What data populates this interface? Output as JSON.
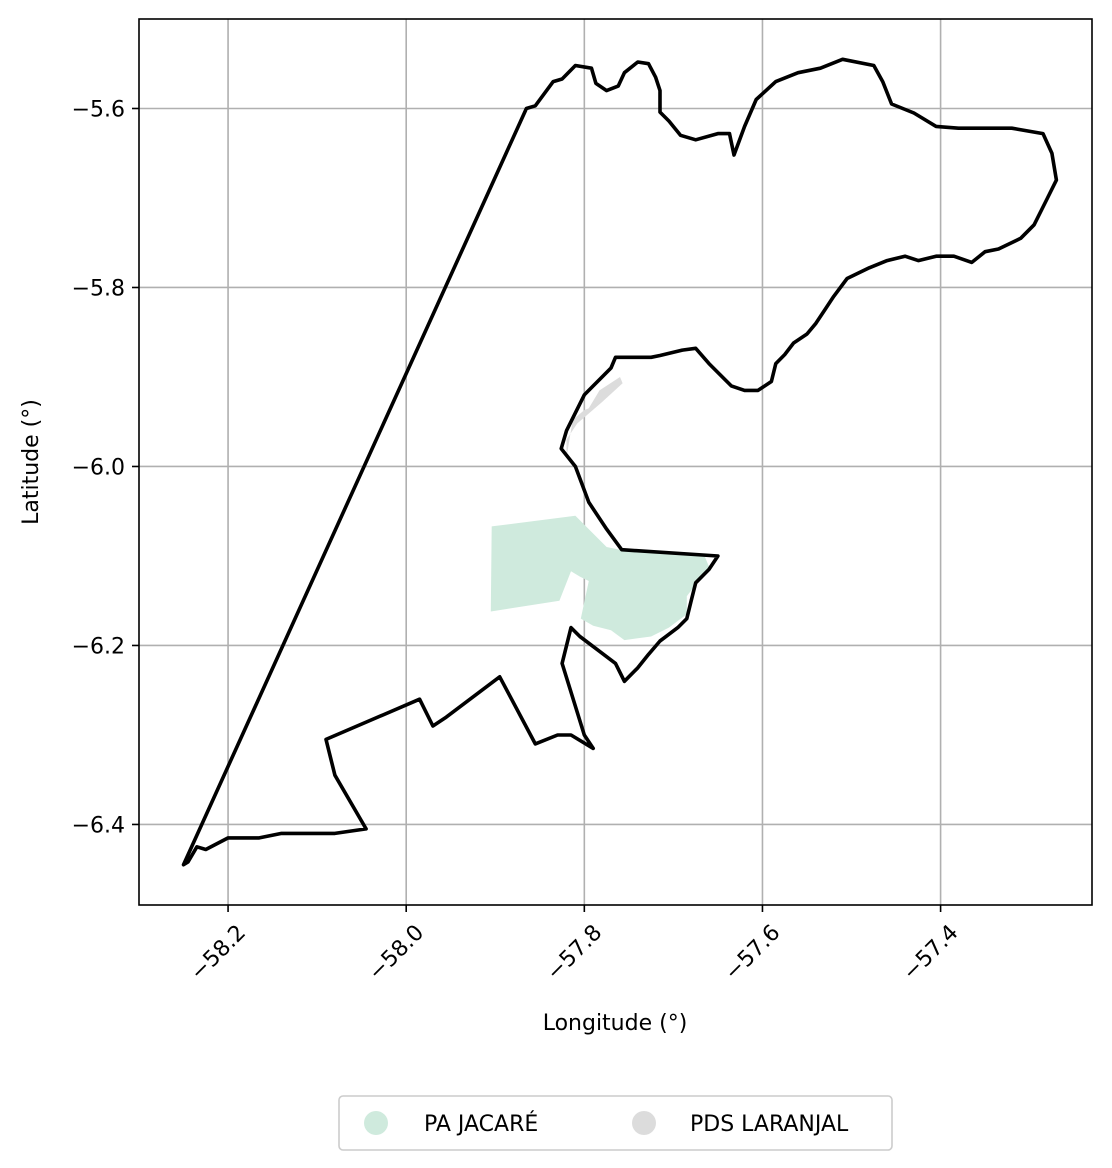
{
  "chart_data": {
    "type": "map",
    "xlabel": "Longitude (°)",
    "ylabel": "Latitude (°)",
    "xlim": [
      -58.3,
      -57.23
    ],
    "ylim": [
      -6.49,
      -5.5
    ],
    "xticks": [
      -58.2,
      -58.0,
      -57.8,
      -57.6,
      -57.4
    ],
    "xtick_labels": [
      "−58.2",
      "−58.0",
      "−57.8",
      "−57.6",
      "−57.4"
    ],
    "yticks": [
      -5.6,
      -5.8,
      -6.0,
      -6.2,
      -6.4
    ],
    "ytick_labels": [
      "−5.6",
      "−5.8",
      "−6.0",
      "−6.2",
      "−6.4"
    ],
    "grid": true,
    "legend": {
      "placement": "bottom-center",
      "entries": [
        {
          "label": "PA JACARÉ",
          "color": "#cfeadd"
        },
        {
          "label": "PDS LARANJAL",
          "color": "#dcdcdc"
        }
      ]
    },
    "regions": [
      {
        "name": "PA JACARÉ",
        "color": "#cfeadd",
        "polygon": [
          [
            -57.904,
            -6.067
          ],
          [
            -57.81,
            -6.055
          ],
          [
            -57.775,
            -6.09
          ],
          [
            -57.76,
            -6.093
          ],
          [
            -57.665,
            -6.1
          ],
          [
            -57.66,
            -6.112
          ],
          [
            -57.685,
            -6.145
          ],
          [
            -57.685,
            -6.165
          ],
          [
            -57.705,
            -6.18
          ],
          [
            -57.725,
            -6.19
          ],
          [
            -57.755,
            -6.194
          ],
          [
            -57.77,
            -6.183
          ],
          [
            -57.79,
            -6.178
          ],
          [
            -57.804,
            -6.17
          ],
          [
            -57.795,
            -6.128
          ],
          [
            -57.805,
            -6.123
          ],
          [
            -57.815,
            -6.117
          ],
          [
            -57.828,
            -6.15
          ],
          [
            -57.905,
            -6.162
          ]
        ]
      },
      {
        "name": "PDS LARANJAL",
        "color": "#dcdcdc",
        "polygon": [
          [
            -57.82,
            -5.99
          ],
          [
            -57.813,
            -5.948
          ],
          [
            -57.8,
            -5.937
          ],
          [
            -57.795,
            -5.935
          ],
          [
            -57.783,
            -5.915
          ],
          [
            -57.76,
            -5.9
          ],
          [
            -57.757,
            -5.907
          ],
          [
            -57.78,
            -5.928
          ],
          [
            -57.808,
            -5.952
          ],
          [
            -57.82,
            -5.97
          ]
        ]
      }
    ],
    "boundary": {
      "color": "#000000",
      "polygon": [
        [
          -57.865,
          -5.6
        ],
        [
          -57.855,
          -5.597
        ],
        [
          -57.835,
          -5.57
        ],
        [
          -57.825,
          -5.567
        ],
        [
          -57.81,
          -5.552
        ],
        [
          -57.792,
          -5.555
        ],
        [
          -57.787,
          -5.572
        ],
        [
          -57.775,
          -5.58
        ],
        [
          -57.762,
          -5.575
        ],
        [
          -57.755,
          -5.56
        ],
        [
          -57.74,
          -5.548
        ],
        [
          -57.728,
          -5.55
        ],
        [
          -57.72,
          -5.565
        ],
        [
          -57.715,
          -5.58
        ],
        [
          -57.715,
          -5.604
        ],
        [
          -57.705,
          -5.614
        ],
        [
          -57.692,
          -5.63
        ],
        [
          -57.675,
          -5.635
        ],
        [
          -57.65,
          -5.628
        ],
        [
          -57.637,
          -5.628
        ],
        [
          -57.632,
          -5.652
        ],
        [
          -57.62,
          -5.62
        ],
        [
          -57.607,
          -5.59
        ],
        [
          -57.585,
          -5.57
        ],
        [
          -57.56,
          -5.56
        ],
        [
          -57.535,
          -5.555
        ],
        [
          -57.51,
          -5.545
        ],
        [
          -57.475,
          -5.552
        ],
        [
          -57.465,
          -5.57
        ],
        [
          -57.455,
          -5.595
        ],
        [
          -57.43,
          -5.605
        ],
        [
          -57.405,
          -5.62
        ],
        [
          -57.38,
          -5.622
        ],
        [
          -57.355,
          -5.622
        ],
        [
          -57.32,
          -5.622
        ],
        [
          -57.285,
          -5.628
        ],
        [
          -57.275,
          -5.65
        ],
        [
          -57.27,
          -5.68
        ],
        [
          -57.28,
          -5.7
        ],
        [
          -57.295,
          -5.73
        ],
        [
          -57.31,
          -5.745
        ],
        [
          -57.335,
          -5.757
        ],
        [
          -57.35,
          -5.76
        ],
        [
          -57.365,
          -5.772
        ],
        [
          -57.385,
          -5.765
        ],
        [
          -57.405,
          -5.765
        ],
        [
          -57.425,
          -5.77
        ],
        [
          -57.44,
          -5.765
        ],
        [
          -57.46,
          -5.77
        ],
        [
          -57.48,
          -5.778
        ],
        [
          -57.505,
          -5.79
        ],
        [
          -57.52,
          -5.81
        ],
        [
          -57.53,
          -5.825
        ],
        [
          -57.54,
          -5.84
        ],
        [
          -57.55,
          -5.852
        ],
        [
          -57.565,
          -5.862
        ],
        [
          -57.575,
          -5.875
        ],
        [
          -57.585,
          -5.885
        ],
        [
          -57.59,
          -5.905
        ],
        [
          -57.605,
          -5.915
        ],
        [
          -57.62,
          -5.915
        ],
        [
          -57.635,
          -5.91
        ],
        [
          -57.66,
          -5.885
        ],
        [
          -57.675,
          -5.868
        ],
        [
          -57.69,
          -5.87
        ],
        [
          -57.715,
          -5.876
        ],
        [
          -57.725,
          -5.878
        ],
        [
          -57.765,
          -5.878
        ],
        [
          -57.77,
          -5.89
        ],
        [
          -57.79,
          -5.91
        ],
        [
          -57.8,
          -5.92
        ],
        [
          -57.81,
          -5.94
        ],
        [
          -57.82,
          -5.96
        ],
        [
          -57.826,
          -5.98
        ],
        [
          -57.81,
          -6.0
        ],
        [
          -57.795,
          -6.04
        ],
        [
          -57.775,
          -6.07
        ],
        [
          -57.758,
          -6.093
        ],
        [
          -57.65,
          -6.1
        ],
        [
          -57.66,
          -6.115
        ],
        [
          -57.675,
          -6.13
        ],
        [
          -57.68,
          -6.15
        ],
        [
          -57.685,
          -6.17
        ],
        [
          -57.695,
          -6.18
        ],
        [
          -57.715,
          -6.195
        ],
        [
          -57.728,
          -6.21
        ],
        [
          -57.74,
          -6.225
        ],
        [
          -57.755,
          -6.24
        ],
        [
          -57.765,
          -6.22
        ],
        [
          -57.785,
          -6.205
        ],
        [
          -57.805,
          -6.19
        ],
        [
          -57.815,
          -6.18
        ],
        [
          -57.825,
          -6.22
        ],
        [
          -57.8,
          -6.3
        ],
        [
          -57.79,
          -6.315
        ],
        [
          -57.815,
          -6.3
        ],
        [
          -57.83,
          -6.3
        ],
        [
          -57.855,
          -6.31
        ],
        [
          -57.895,
          -6.235
        ],
        [
          -57.955,
          -6.28
        ],
        [
          -57.97,
          -6.29
        ],
        [
          -57.985,
          -6.26
        ],
        [
          -58.09,
          -6.305
        ],
        [
          -58.08,
          -6.345
        ],
        [
          -58.045,
          -6.405
        ],
        [
          -58.08,
          -6.41
        ],
        [
          -58.11,
          -6.41
        ],
        [
          -58.14,
          -6.41
        ],
        [
          -58.165,
          -6.415
        ],
        [
          -58.2,
          -6.415
        ],
        [
          -58.225,
          -6.428
        ],
        [
          -58.235,
          -6.425
        ],
        [
          -58.245,
          -6.442
        ],
        [
          -58.25,
          -6.445
        ]
      ]
    }
  }
}
